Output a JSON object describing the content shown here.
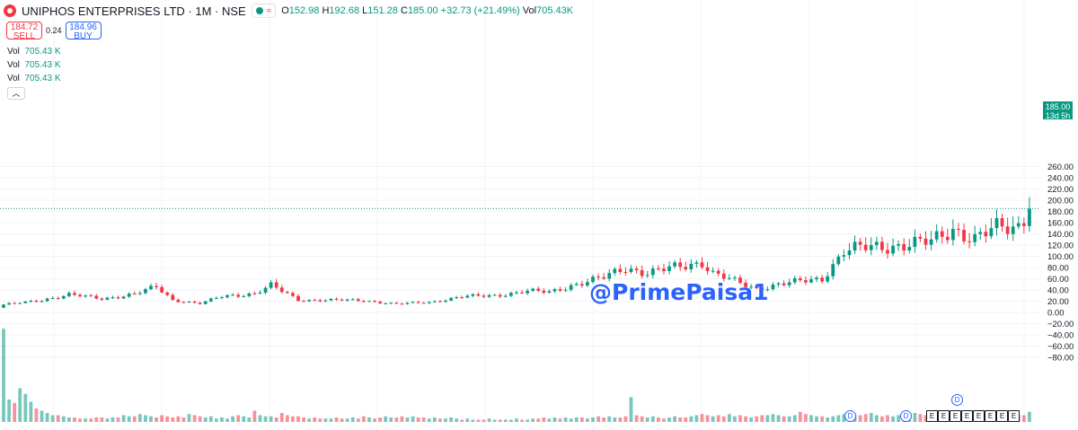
{
  "header": {
    "title": "UNIPHOS ENTERPRISES LTD · 1M · NSE",
    "ohlc": {
      "o_label": "O",
      "o": "152.98",
      "h_label": "H",
      "h": "192.68",
      "l_label": "L",
      "l": "151.28",
      "c_label": "C",
      "c": "185.00",
      "change": "+32.73 (+21.49%)",
      "vol_label": "Vol",
      "vol": "705.43K"
    }
  },
  "trade": {
    "sell_price": "184.72",
    "sell_label": "SELL",
    "spread": "0.24",
    "buy_price": "184.96",
    "buy_label": "BUY"
  },
  "volume_rows": [
    {
      "label": "Vol",
      "value": "705.43 K"
    },
    {
      "label": "Vol",
      "value": "705.43 K"
    },
    {
      "label": "Vol",
      "value": "705.43 K"
    }
  ],
  "collapse_icon": "chevron-up-icon",
  "watermark": "@PrimePaisa1",
  "last_price": {
    "value": "185.00",
    "countdown": "13d 5h"
  },
  "events": {
    "dividend_label": "D",
    "earnings_label": "E"
  },
  "colors": {
    "up": "#089981",
    "down": "#f23645",
    "accent": "#2962ff"
  },
  "chart_data": {
    "type": "candlestick",
    "ylim": [
      -95,
      265
    ],
    "yticks": [
      "260.00",
      "240.00",
      "220.00",
      "200.00",
      "180.00",
      "160.00",
      "140.00",
      "120.00",
      "100.00",
      "80.00",
      "60.00",
      "40.00",
      "20.00",
      "0.00",
      "−20.00",
      "−40.00",
      "−60.00",
      "−80.00"
    ],
    "ytick_values": [
      260,
      240,
      220,
      200,
      180,
      160,
      140,
      120,
      100,
      80,
      60,
      40,
      20,
      0,
      -20,
      -40,
      -60,
      -80
    ],
    "last_close": 185.0,
    "anchors": [
      [
        0,
        14
      ],
      [
        6,
        20
      ],
      [
        12,
        32
      ],
      [
        18,
        24
      ],
      [
        24,
        33
      ],
      [
        28,
        45
      ],
      [
        31,
        22
      ],
      [
        36,
        16
      ],
      [
        40,
        28
      ],
      [
        46,
        34
      ],
      [
        49,
        48
      ],
      [
        54,
        22
      ],
      [
        60,
        22
      ],
      [
        66,
        21
      ],
      [
        72,
        15
      ],
      [
        78,
        18
      ],
      [
        84,
        28
      ],
      [
        90,
        30
      ],
      [
        96,
        38
      ],
      [
        100,
        36
      ],
      [
        104,
        48
      ],
      [
        110,
        62
      ],
      [
        114,
        80
      ],
      [
        118,
        70
      ],
      [
        124,
        82
      ],
      [
        128,
        90
      ],
      [
        130,
        70
      ],
      [
        134,
        55
      ],
      [
        138,
        42
      ],
      [
        142,
        50
      ],
      [
        146,
        55
      ],
      [
        150,
        60
      ],
      [
        154,
        110
      ],
      [
        158,
        115
      ],
      [
        164,
        120
      ],
      [
        170,
        125
      ],
      [
        174,
        150
      ],
      [
        178,
        130
      ],
      [
        182,
        150
      ],
      [
        186,
        155
      ],
      [
        188,
        185
      ]
    ],
    "volume_pct": [
      0.83,
      0.2,
      0.17,
      0.3,
      0.25,
      0.18,
      0.12,
      0.1,
      0.08,
      0.06,
      0.06,
      0.05,
      0.04,
      0.04,
      0.03,
      0.03,
      0.03,
      0.04,
      0.04,
      0.03,
      0.04,
      0.04,
      0.06,
      0.05,
      0.05,
      0.07,
      0.06,
      0.05,
      0.04,
      0.06,
      0.05,
      0.04,
      0.05,
      0.04,
      0.07,
      0.06,
      0.05,
      0.04,
      0.05,
      0.03,
      0.04,
      0.03,
      0.05,
      0.06,
      0.05,
      0.04,
      0.1,
      0.06,
      0.05,
      0.05,
      0.04,
      0.08,
      0.06,
      0.05,
      0.05,
      0.04,
      0.03,
      0.04,
      0.03,
      0.03,
      0.03,
      0.04,
      0.03,
      0.03,
      0.04,
      0.03,
      0.05,
      0.04,
      0.03,
      0.04,
      0.05,
      0.04,
      0.04,
      0.05,
      0.04,
      0.05,
      0.04,
      0.04,
      0.03,
      0.04,
      0.03,
      0.03,
      0.04,
      0.03,
      0.02,
      0.03,
      0.02,
      0.02,
      0.02,
      0.03,
      0.02,
      0.02,
      0.02,
      0.02,
      0.03,
      0.02,
      0.02,
      0.03,
      0.03,
      0.04,
      0.03,
      0.04,
      0.03,
      0.04,
      0.03,
      0.04,
      0.04,
      0.03,
      0.04,
      0.05,
      0.04,
      0.05,
      0.04,
      0.04,
      0.05,
      0.22,
      0.06,
      0.05,
      0.04,
      0.05,
      0.04,
      0.03,
      0.04,
      0.05,
      0.04,
      0.04,
      0.05,
      0.06,
      0.07,
      0.06,
      0.05,
      0.06,
      0.05,
      0.07,
      0.05,
      0.06,
      0.05,
      0.04,
      0.05,
      0.06,
      0.06,
      0.07,
      0.06,
      0.05,
      0.05,
      0.06,
      0.09,
      0.07,
      0.06,
      0.05,
      0.05,
      0.04,
      0.05,
      0.06,
      0.07,
      0.1,
      0.06,
      0.06,
      0.07,
      0.08,
      0.06,
      0.05,
      0.06,
      0.05,
      0.06,
      0.05,
      0.06,
      0.08,
      0.07,
      0.06,
      0.05,
      0.08,
      0.06,
      0.09,
      0.07,
      0.06,
      0.08,
      0.06,
      0.07,
      0.06,
      0.08,
      0.1,
      0.07,
      0.07,
      0.09,
      0.08,
      0.06,
      0.06,
      0.09
    ]
  }
}
